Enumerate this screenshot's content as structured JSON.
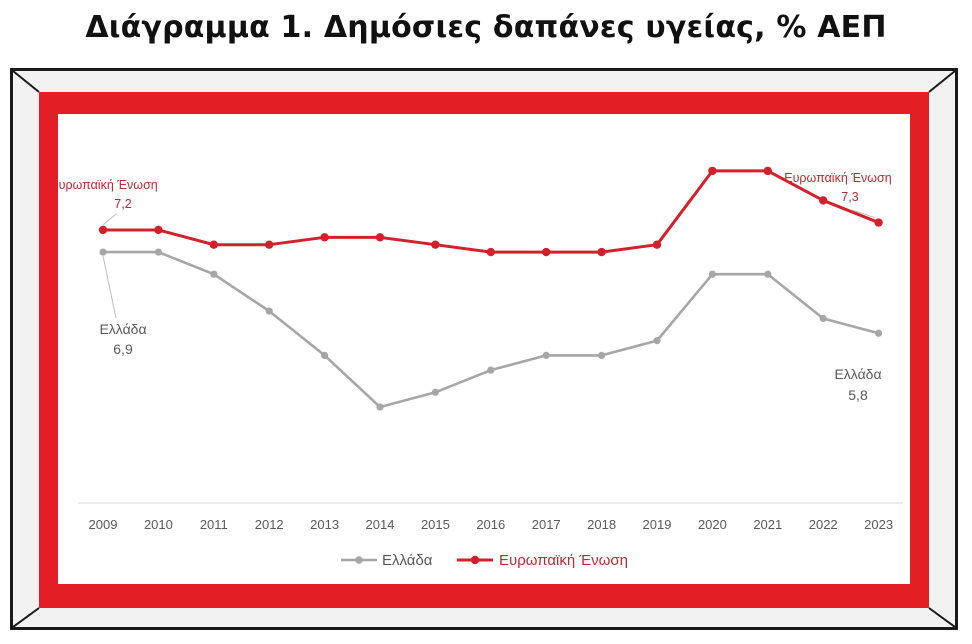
{
  "title": "Διάγραμμα 1. Δημόσιες δαπάνες υγείας, % ΑΕΠ",
  "colors": {
    "greece": "#a6a6a6",
    "eu": "#d3202a",
    "frame_red": "#e31e24"
  },
  "chart_data": {
    "type": "line",
    "x": [
      "2009",
      "2010",
      "2011",
      "2012",
      "2013",
      "2014",
      "2015",
      "2016",
      "2017",
      "2018",
      "2019",
      "2020",
      "2021",
      "2022",
      "2023"
    ],
    "ylim": [
      3.5,
      8.5
    ],
    "grid": false,
    "legend_position": "bottom",
    "series": [
      {
        "name": "Ελλάδα",
        "values": [
          6.9,
          6.9,
          6.6,
          6.1,
          5.5,
          4.8,
          5.0,
          5.3,
          5.5,
          5.5,
          5.7,
          6.6,
          6.6,
          6.0,
          5.8
        ]
      },
      {
        "name": "Ευρωπαϊκή Ένωση",
        "values": [
          7.2,
          7.2,
          7.0,
          7.0,
          7.1,
          7.1,
          7.0,
          6.9,
          6.9,
          6.9,
          7.0,
          8.0,
          8.0,
          7.6,
          7.3
        ]
      }
    ],
    "annotations": [
      {
        "series": 1,
        "index": 0,
        "label": "Ευρωπαϊκή Ένωση",
        "value": "7,2"
      },
      {
        "series": 1,
        "index": 14,
        "label": "Ευρωπαϊκή Ένωση",
        "value": "7,3"
      },
      {
        "series": 0,
        "index": 0,
        "label": "Ελλάδα",
        "value": "6,9"
      },
      {
        "series": 0,
        "index": 14,
        "label": "Ελλάδα",
        "value": "5,8"
      }
    ]
  }
}
